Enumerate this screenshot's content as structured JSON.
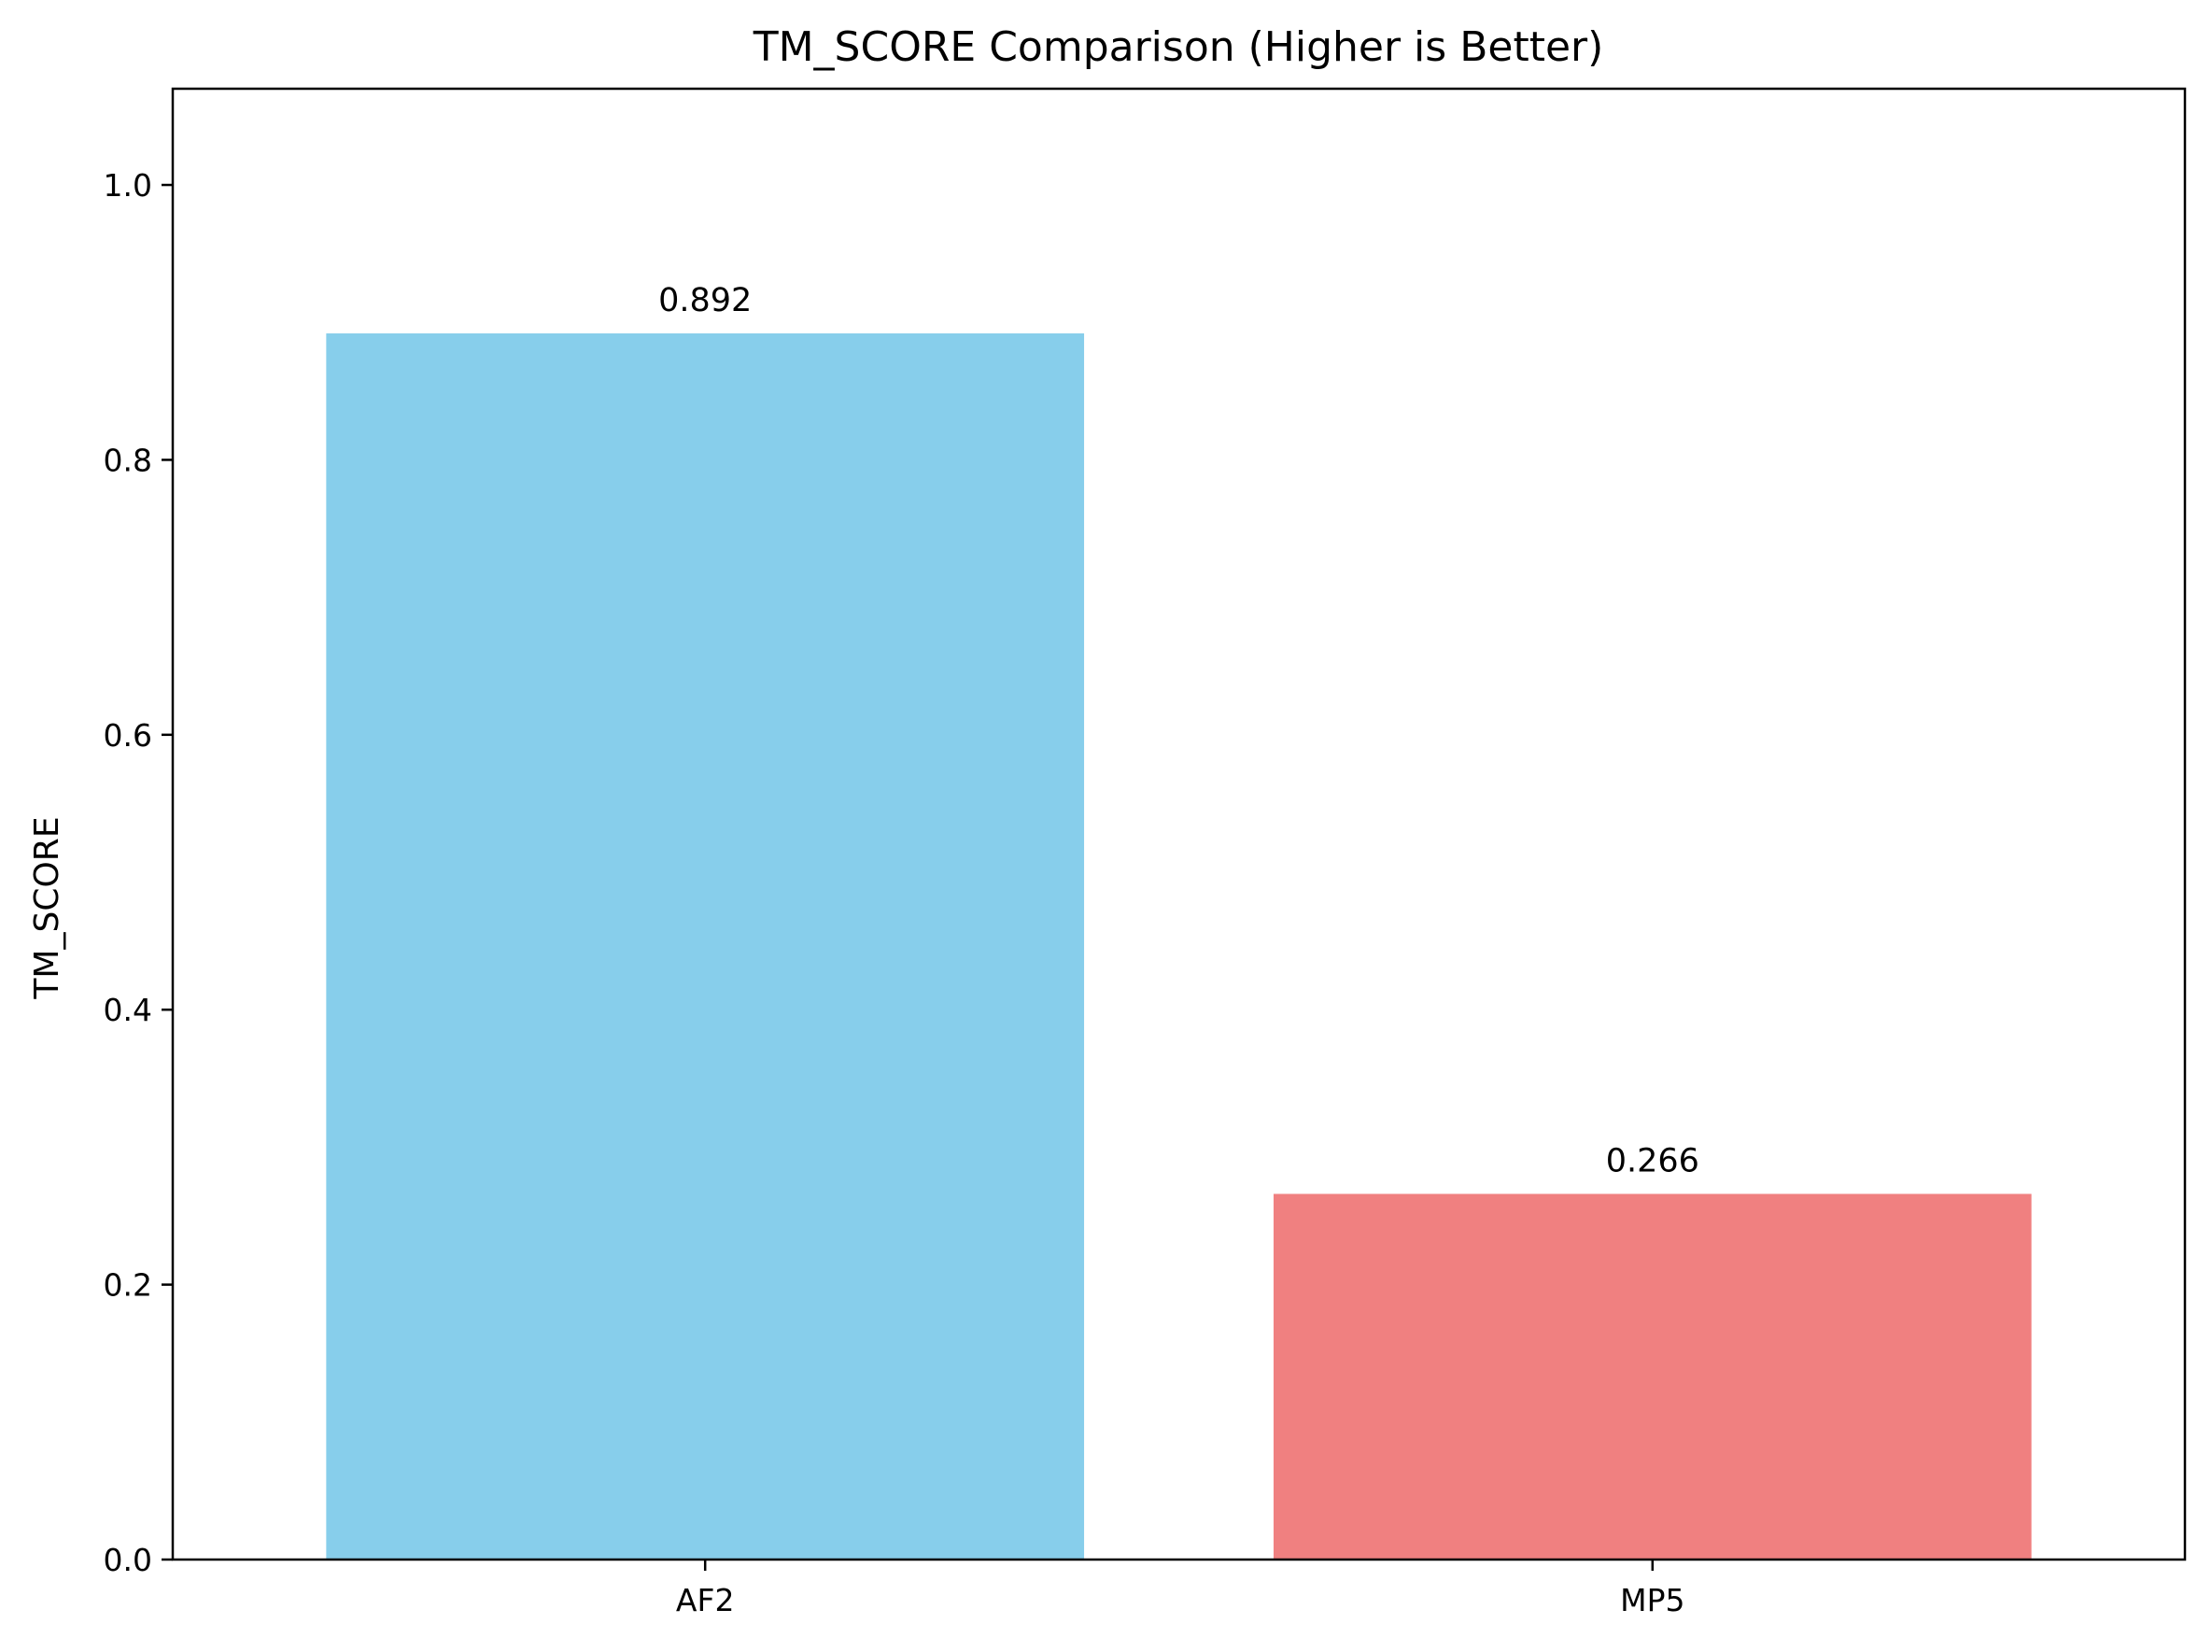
{
  "chart_data": {
    "type": "bar",
    "title": "TM_SCORE Comparison (Higher is Better)",
    "xlabel": "",
    "ylabel": "TM_SCORE",
    "categories": [
      "AF2",
      "MP5"
    ],
    "values": [
      0.892,
      0.266
    ],
    "value_labels": [
      "0.892",
      "0.266"
    ],
    "colors": [
      "#87CEEB",
      "#F08080"
    ],
    "ylim": [
      0,
      1.07
    ],
    "yticks": [
      0.0,
      0.2,
      0.4,
      0.6,
      0.8,
      1.0
    ],
    "ytick_labels": [
      "0.0",
      "0.2",
      "0.4",
      "0.6",
      "0.8",
      "1.0"
    ],
    "grid": false,
    "legend": false
  }
}
